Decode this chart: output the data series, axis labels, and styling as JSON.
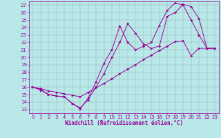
{
  "xlabel": "Windchill (Refroidissement éolien,°C)",
  "bg_color": "#b8e8e8",
  "line_color": "#990099",
  "xlim": [
    -0.5,
    23.5
  ],
  "ylim": [
    12.5,
    27.5
  ],
  "xticks": [
    0,
    1,
    2,
    3,
    4,
    5,
    6,
    7,
    8,
    9,
    10,
    11,
    12,
    13,
    14,
    15,
    16,
    17,
    18,
    19,
    20,
    21,
    22,
    23
  ],
  "yticks": [
    13,
    14,
    15,
    16,
    17,
    18,
    19,
    20,
    21,
    22,
    23,
    24,
    25,
    26,
    27
  ],
  "series1": {
    "x": [
      0,
      1,
      2,
      3,
      4,
      5,
      6,
      7,
      8,
      9,
      10,
      11,
      12,
      13,
      14,
      15,
      16,
      17,
      18,
      19,
      20,
      21,
      22,
      23
    ],
    "y": [
      16,
      15.7,
      15.0,
      14.8,
      14.7,
      13.8,
      13.1,
      14.5,
      16.7,
      19.2,
      21.0,
      24.2,
      22.0,
      21.0,
      21.5,
      22.0,
      24.3,
      26.3,
      27.3,
      27.0,
      25.0,
      23.0,
      21.2,
      21.2
    ]
  },
  "series2": {
    "x": [
      0,
      1,
      2,
      3,
      4,
      5,
      6,
      7,
      8,
      9,
      10,
      11,
      12,
      13,
      14,
      15,
      16,
      17,
      18,
      19,
      20,
      21,
      22,
      23
    ],
    "y": [
      16,
      15.6,
      15.0,
      14.8,
      14.7,
      13.8,
      13.2,
      14.3,
      16.0,
      17.8,
      20.0,
      22.0,
      24.5,
      23.2,
      21.8,
      21.2,
      21.5,
      25.5,
      26.0,
      27.1,
      26.8,
      25.2,
      21.2,
      21.2
    ]
  },
  "series3": {
    "x": [
      0,
      1,
      2,
      3,
      4,
      5,
      6,
      7,
      8,
      9,
      10,
      11,
      12,
      13,
      14,
      15,
      16,
      17,
      18,
      19,
      20,
      21,
      22,
      23
    ],
    "y": [
      16,
      15.8,
      15.5,
      15.3,
      15.1,
      14.9,
      14.7,
      15.3,
      15.9,
      16.5,
      17.1,
      17.8,
      18.4,
      19.0,
      19.7,
      20.3,
      20.9,
      21.5,
      22.1,
      22.2,
      20.2,
      21.2,
      21.2,
      21.2
    ]
  },
  "tick_fontsize": 5,
  "xlabel_fontsize": 5.5
}
